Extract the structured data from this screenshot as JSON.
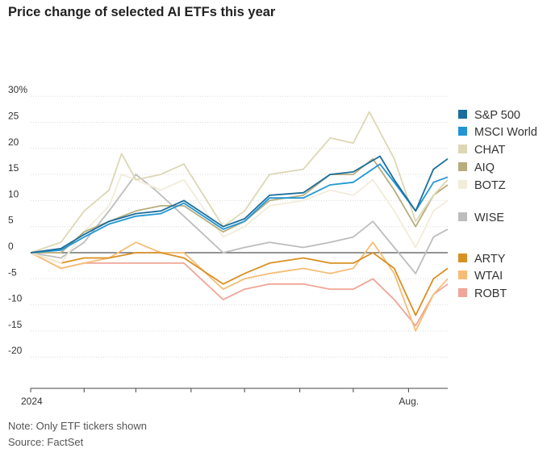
{
  "chart_data": {
    "type": "line",
    "title": "Price change of selected AI ETFs this year",
    "ylim": [
      -20,
      30
    ],
    "yticks": [
      30,
      25,
      20,
      15,
      10,
      5,
      0,
      -5,
      -10,
      -15,
      -20
    ],
    "ytick_labels": [
      "30%",
      "25",
      "20",
      "15",
      "10",
      "5",
      "0",
      "-5",
      "-10",
      "-15",
      "-20"
    ],
    "x_start": "2024-01-02",
    "x_end": "2024-08-23",
    "xticks": [
      "2024-01-02",
      "2024-02-01",
      "2024-03-01",
      "2024-04-01",
      "2024-05-01",
      "2024-06-01",
      "2024-07-01",
      "2024-08-01"
    ],
    "xtick_labels": [
      "2024",
      "",
      "",
      "",
      "",
      "",
      "",
      "Aug."
    ],
    "grid": true,
    "legend_position": "right",
    "series": [
      {
        "name": "S&P 500",
        "color": "#1b6e9c",
        "points": [
          [
            "2024-01-02",
            0
          ],
          [
            "2024-01-19",
            0.8
          ],
          [
            "2024-02-01",
            3.5
          ],
          [
            "2024-02-15",
            6
          ],
          [
            "2024-03-01",
            7.5
          ],
          [
            "2024-03-15",
            8
          ],
          [
            "2024-03-28",
            10
          ],
          [
            "2024-04-19",
            5
          ],
          [
            "2024-05-01",
            6.5
          ],
          [
            "2024-05-15",
            11
          ],
          [
            "2024-06-03",
            11.5
          ],
          [
            "2024-06-18",
            15
          ],
          [
            "2024-07-01",
            15.5
          ],
          [
            "2024-07-16",
            18.5
          ],
          [
            "2024-07-24",
            14
          ],
          [
            "2024-08-05",
            8
          ],
          [
            "2024-08-15",
            16
          ],
          [
            "2024-08-23",
            18
          ]
        ]
      },
      {
        "name": "MSCI World",
        "color": "#2196d3",
        "points": [
          [
            "2024-01-02",
            0
          ],
          [
            "2024-01-19",
            0.5
          ],
          [
            "2024-02-01",
            3
          ],
          [
            "2024-02-15",
            5.5
          ],
          [
            "2024-03-01",
            7
          ],
          [
            "2024-03-15",
            7.5
          ],
          [
            "2024-03-28",
            9.5
          ],
          [
            "2024-04-19",
            4.5
          ],
          [
            "2024-05-01",
            6
          ],
          [
            "2024-05-15",
            10.5
          ],
          [
            "2024-06-03",
            10.5
          ],
          [
            "2024-06-18",
            13
          ],
          [
            "2024-07-01",
            13.5
          ],
          [
            "2024-07-16",
            17
          ],
          [
            "2024-07-24",
            13.5
          ],
          [
            "2024-08-05",
            8
          ],
          [
            "2024-08-15",
            13.5
          ],
          [
            "2024-08-23",
            14.5
          ]
        ]
      },
      {
        "name": "CHAT",
        "color": "#ddd7b5",
        "points": [
          [
            "2024-01-02",
            0
          ],
          [
            "2024-01-19",
            2
          ],
          [
            "2024-02-01",
            8
          ],
          [
            "2024-02-15",
            12
          ],
          [
            "2024-02-22",
            19
          ],
          [
            "2024-03-01",
            14
          ],
          [
            "2024-03-15",
            15
          ],
          [
            "2024-03-28",
            17
          ],
          [
            "2024-04-19",
            5
          ],
          [
            "2024-05-01",
            8
          ],
          [
            "2024-05-15",
            15
          ],
          [
            "2024-06-03",
            16
          ],
          [
            "2024-06-18",
            22
          ],
          [
            "2024-07-01",
            21
          ],
          [
            "2024-07-10",
            27
          ],
          [
            "2024-07-24",
            18
          ],
          [
            "2024-08-05",
            6
          ],
          [
            "2024-08-15",
            11
          ],
          [
            "2024-08-23",
            14
          ]
        ]
      },
      {
        "name": "AIQ",
        "color": "#b7ad7e",
        "points": [
          [
            "2024-01-02",
            0
          ],
          [
            "2024-01-19",
            0
          ],
          [
            "2024-02-01",
            4
          ],
          [
            "2024-02-15",
            6
          ],
          [
            "2024-03-01",
            8
          ],
          [
            "2024-03-15",
            9
          ],
          [
            "2024-03-28",
            9
          ],
          [
            "2024-04-19",
            4
          ],
          [
            "2024-05-01",
            6
          ],
          [
            "2024-05-15",
            10
          ],
          [
            "2024-06-03",
            11
          ],
          [
            "2024-06-18",
            15
          ],
          [
            "2024-07-01",
            15
          ],
          [
            "2024-07-12",
            18
          ],
          [
            "2024-07-24",
            12
          ],
          [
            "2024-08-05",
            5
          ],
          [
            "2024-08-15",
            11
          ],
          [
            "2024-08-23",
            13
          ]
        ]
      },
      {
        "name": "BOTZ",
        "color": "#f2ecda",
        "points": [
          [
            "2024-01-02",
            0
          ],
          [
            "2024-01-19",
            -2
          ],
          [
            "2024-02-01",
            4
          ],
          [
            "2024-02-15",
            9
          ],
          [
            "2024-02-22",
            15
          ],
          [
            "2024-03-01",
            14
          ],
          [
            "2024-03-15",
            12
          ],
          [
            "2024-03-28",
            14
          ],
          [
            "2024-04-19",
            3
          ],
          [
            "2024-05-01",
            5
          ],
          [
            "2024-05-15",
            9
          ],
          [
            "2024-06-03",
            10
          ],
          [
            "2024-06-18",
            12
          ],
          [
            "2024-07-01",
            11
          ],
          [
            "2024-07-12",
            14
          ],
          [
            "2024-07-24",
            8
          ],
          [
            "2024-08-05",
            1
          ],
          [
            "2024-08-15",
            8
          ],
          [
            "2024-08-23",
            10
          ]
        ]
      },
      {
        "name": "WISE",
        "color": "#bdbdbd",
        "points": [
          [
            "2024-01-02",
            0
          ],
          [
            "2024-01-19",
            -1
          ],
          [
            "2024-02-01",
            2
          ],
          [
            "2024-02-15",
            8
          ],
          [
            "2024-03-01",
            15
          ],
          [
            "2024-03-12",
            12
          ],
          [
            "2024-03-28",
            7
          ],
          [
            "2024-04-19",
            0
          ],
          [
            "2024-05-01",
            1
          ],
          [
            "2024-05-15",
            2
          ],
          [
            "2024-06-03",
            1
          ],
          [
            "2024-06-18",
            2
          ],
          [
            "2024-07-01",
            3
          ],
          [
            "2024-07-12",
            6
          ],
          [
            "2024-07-24",
            1
          ],
          [
            "2024-08-05",
            -4
          ],
          [
            "2024-08-15",
            3
          ],
          [
            "2024-08-23",
            4.5
          ]
        ]
      },
      {
        "name": "ARTY",
        "color": "#d99022",
        "points": [
          [
            "2024-01-02",
            0
          ],
          [
            "2024-01-19",
            -2
          ],
          [
            "2024-02-01",
            -1
          ],
          [
            "2024-02-15",
            -1
          ],
          [
            "2024-03-01",
            0
          ],
          [
            "2024-03-15",
            0
          ],
          [
            "2024-03-28",
            -1
          ],
          [
            "2024-04-19",
            -6
          ],
          [
            "2024-05-01",
            -4
          ],
          [
            "2024-05-15",
            -2
          ],
          [
            "2024-06-03",
            -1
          ],
          [
            "2024-06-18",
            -2
          ],
          [
            "2024-07-01",
            -2
          ],
          [
            "2024-07-12",
            0
          ],
          [
            "2024-07-24",
            -3
          ],
          [
            "2024-08-05",
            -12
          ],
          [
            "2024-08-15",
            -5
          ],
          [
            "2024-08-23",
            -3
          ]
        ]
      },
      {
        "name": "WTAI",
        "color": "#f6bd77",
        "points": [
          [
            "2024-01-02",
            0
          ],
          [
            "2024-01-19",
            -3
          ],
          [
            "2024-02-01",
            -2
          ],
          [
            "2024-02-15",
            -1
          ],
          [
            "2024-03-01",
            2
          ],
          [
            "2024-03-15",
            0
          ],
          [
            "2024-03-28",
            0
          ],
          [
            "2024-04-19",
            -7
          ],
          [
            "2024-05-01",
            -5
          ],
          [
            "2024-05-15",
            -4
          ],
          [
            "2024-06-03",
            -3
          ],
          [
            "2024-06-18",
            -4
          ],
          [
            "2024-07-01",
            -3
          ],
          [
            "2024-07-12",
            2
          ],
          [
            "2024-07-24",
            -4
          ],
          [
            "2024-08-05",
            -15
          ],
          [
            "2024-08-15",
            -8
          ],
          [
            "2024-08-23",
            -5
          ]
        ]
      },
      {
        "name": "ROBT",
        "color": "#f0a596",
        "points": [
          [
            "2024-01-02",
            0
          ],
          [
            "2024-01-19",
            -3
          ],
          [
            "2024-02-01",
            -2
          ],
          [
            "2024-02-15",
            -2
          ],
          [
            "2024-03-01",
            -2
          ],
          [
            "2024-03-15",
            -2
          ],
          [
            "2024-03-28",
            -2
          ],
          [
            "2024-04-19",
            -9
          ],
          [
            "2024-05-01",
            -7
          ],
          [
            "2024-05-15",
            -6
          ],
          [
            "2024-06-03",
            -6
          ],
          [
            "2024-06-18",
            -7
          ],
          [
            "2024-07-01",
            -7
          ],
          [
            "2024-07-12",
            -5
          ],
          [
            "2024-07-24",
            -9
          ],
          [
            "2024-08-05",
            -14
          ],
          [
            "2024-08-15",
            -8
          ],
          [
            "2024-08-23",
            -6
          ]
        ]
      }
    ]
  },
  "footer": {
    "note": "Note: Only ETF tickers shown",
    "source": "Source: FactSet"
  }
}
